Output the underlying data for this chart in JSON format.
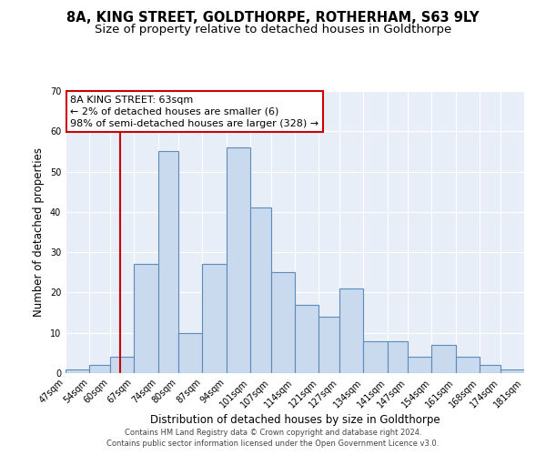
{
  "title": "8A, KING STREET, GOLDTHORPE, ROTHERHAM, S63 9LY",
  "subtitle": "Size of property relative to detached houses in Goldthorpe",
  "xlabel": "Distribution of detached houses by size in Goldthorpe",
  "ylabel": "Number of detached properties",
  "bin_edges": [
    47,
    54,
    60,
    67,
    74,
    80,
    87,
    94,
    101,
    107,
    114,
    121,
    127,
    134,
    141,
    147,
    154,
    161,
    168,
    174,
    181
  ],
  "bar_heights": [
    1,
    2,
    4,
    27,
    55,
    10,
    27,
    56,
    41,
    25,
    17,
    14,
    21,
    8,
    8,
    4,
    7,
    4,
    2,
    1
  ],
  "bar_facecolor": "#c9d9ee",
  "bar_edgecolor": "#5b8db8",
  "bar_linewidth": 0.8,
  "vline_x": 63,
  "vline_color": "#cc0000",
  "vline_linewidth": 1.5,
  "ylim": [
    0,
    70
  ],
  "yticks": [
    0,
    10,
    20,
    30,
    40,
    50,
    60,
    70
  ],
  "annotation_title": "8A KING STREET: 63sqm",
  "annotation_line1": "← 2% of detached houses are smaller (6)",
  "annotation_line2": "98% of semi-detached houses are larger (328) →",
  "annotation_box_facecolor": "#ffffff",
  "annotation_box_edgecolor": "#cc0000",
  "footer_line1": "Contains HM Land Registry data © Crown copyright and database right 2024.",
  "footer_line2": "Contains public sector information licensed under the Open Government Licence v3.0.",
  "plot_bg_color": "#e8eef7",
  "grid_color": "#ffffff",
  "title_fontsize": 10.5,
  "subtitle_fontsize": 9.5,
  "xlabel_fontsize": 8.5,
  "ylabel_fontsize": 8.5,
  "tick_fontsize": 7,
  "annotation_fontsize": 8,
  "footer_fontsize": 6
}
